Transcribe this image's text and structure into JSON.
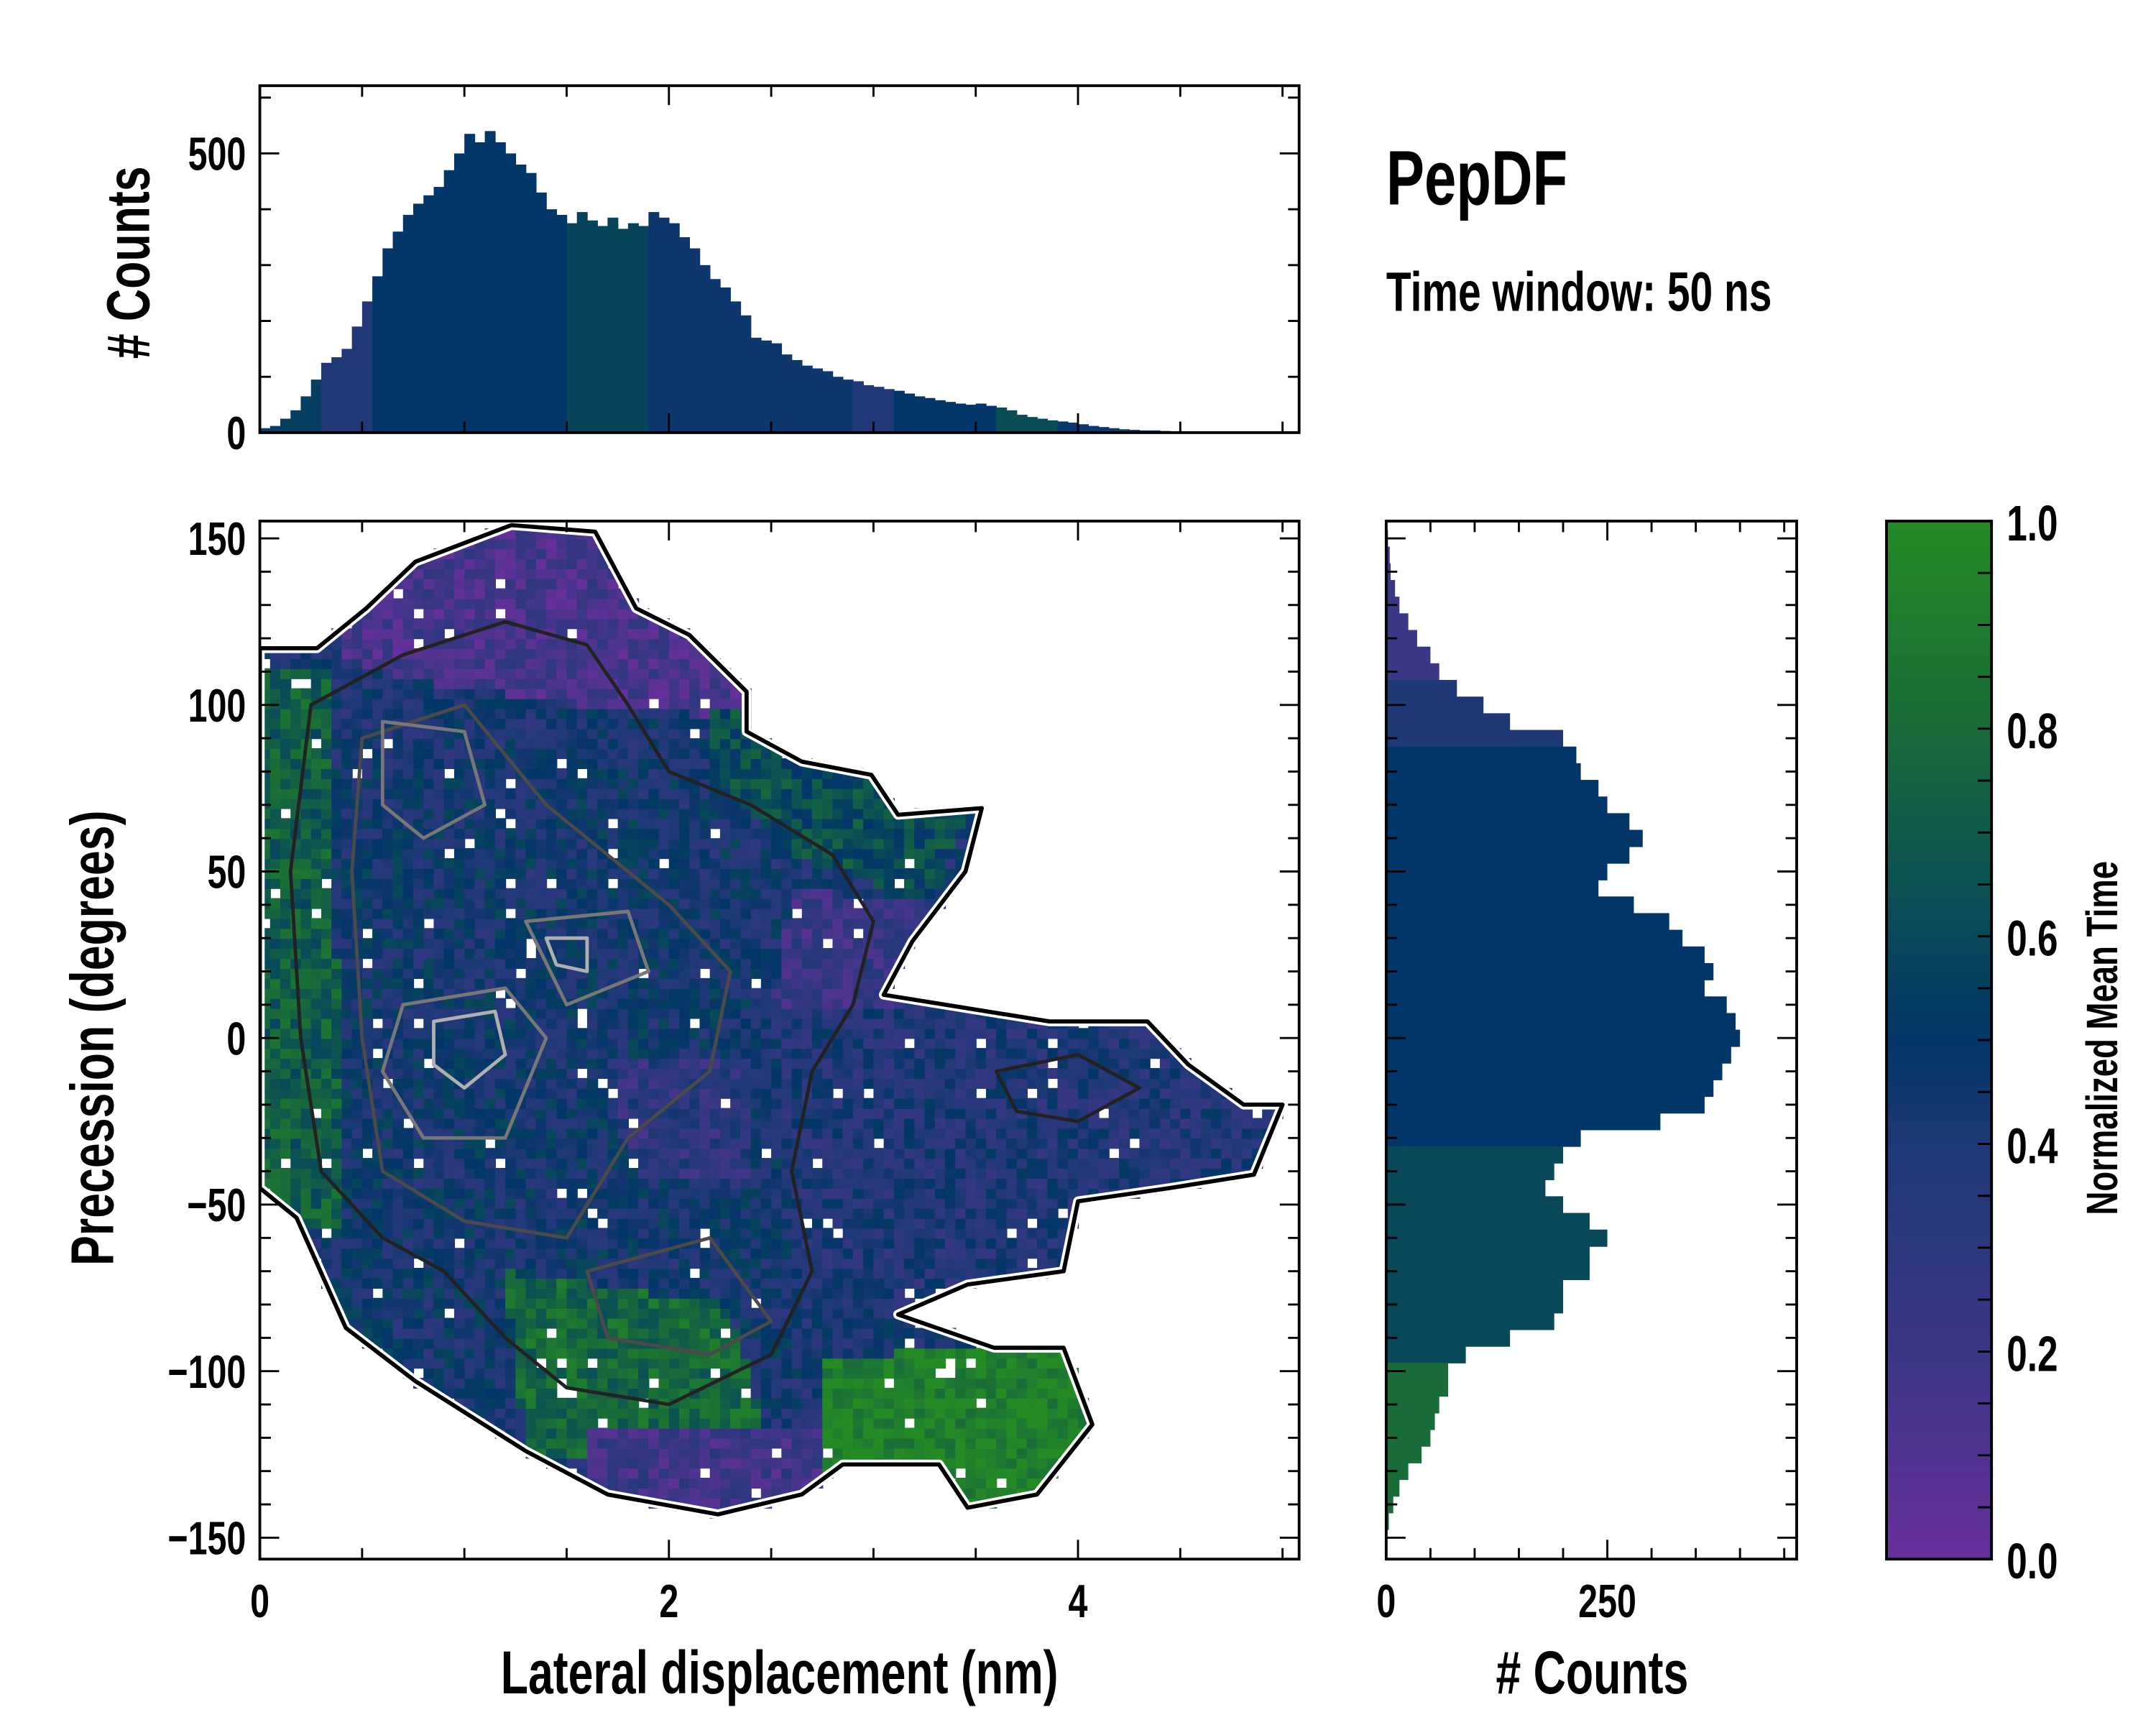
{
  "chart_data": [
    {
      "id": "joint",
      "type": "heatmap",
      "xlabel": "Lateral displacement (nm)",
      "ylabel": "Precession (degrees)",
      "xlim": [
        0,
        5.08
      ],
      "ylim": [
        -156,
        155
      ],
      "xticks": [
        0,
        2,
        4
      ],
      "xtick_labels": [
        "0",
        "2",
        "4"
      ],
      "yticks": [
        -150,
        -100,
        -50,
        0,
        50,
        100,
        150
      ],
      "ytick_labels": [
        "−150",
        "−100",
        "−50",
        "0",
        "50",
        "100",
        "150"
      ],
      "base_value": 0.42,
      "outline": [
        [
          0,
          117
        ],
        [
          0.28,
          117
        ],
        [
          0.52,
          129
        ],
        [
          0.76,
          143
        ],
        [
          1.23,
          154
        ],
        [
          1.64,
          152
        ],
        [
          1.84,
          129
        ],
        [
          2.1,
          121
        ],
        [
          2.38,
          104
        ],
        [
          2.38,
          92
        ],
        [
          2.65,
          83
        ],
        [
          2.99,
          79
        ],
        [
          3.12,
          67
        ],
        [
          3.53,
          69
        ],
        [
          3.45,
          50
        ],
        [
          3.19,
          29
        ],
        [
          3.05,
          13
        ],
        [
          3.86,
          5
        ],
        [
          4.34,
          5
        ],
        [
          4.54,
          -8
        ],
        [
          4.81,
          -20
        ],
        [
          5.0,
          -20
        ],
        [
          4.86,
          -41
        ],
        [
          4.45,
          -45
        ],
        [
          4.0,
          -49
        ],
        [
          3.93,
          -70
        ],
        [
          3.46,
          -74
        ],
        [
          3.12,
          -83
        ],
        [
          3.59,
          -93
        ],
        [
          3.93,
          -93
        ],
        [
          4.07,
          -116
        ],
        [
          3.8,
          -137
        ],
        [
          3.46,
          -141
        ],
        [
          3.32,
          -128
        ],
        [
          2.85,
          -128
        ],
        [
          2.65,
          -137
        ],
        [
          2.24,
          -143
        ],
        [
          1.7,
          -137
        ],
        [
          1.3,
          -124
        ],
        [
          0.76,
          -103
        ],
        [
          0.42,
          -87
        ],
        [
          0.18,
          -54
        ],
        [
          0,
          -45
        ]
      ],
      "regions": [
        {
          "value": 0.45,
          "polygon": [
            [
              0.3,
              80
            ],
            [
              2.4,
              80
            ],
            [
              2.6,
              -100
            ],
            [
              0.3,
              -100
            ]
          ]
        },
        {
          "value": 0.72,
          "polygon": [
            [
              0,
              110
            ],
            [
              0.35,
              110
            ],
            [
              0.4,
              -60
            ],
            [
              0,
              -50
            ]
          ]
        },
        {
          "value": 0.15,
          "polygon": [
            [
              0.5,
              160
            ],
            [
              2.2,
              160
            ],
            [
              2.6,
              95
            ],
            [
              1.6,
              100
            ],
            [
              0.7,
              108
            ],
            [
              0.4,
              115
            ]
          ]
        },
        {
          "value": 0.62,
          "polygon": [
            [
              2.2,
              100
            ],
            [
              3.5,
              75
            ],
            [
              3.3,
              40
            ],
            [
              2.6,
              55
            ],
            [
              2.2,
              80
            ]
          ]
        },
        {
          "value": 0.22,
          "polygon": [
            [
              2.6,
              45
            ],
            [
              3.3,
              40
            ],
            [
              3.1,
              5
            ],
            [
              2.5,
              5
            ]
          ]
        },
        {
          "value": 0.3,
          "polygon": [
            [
              1.7,
              -5
            ],
            [
              2.4,
              -5
            ],
            [
              2.4,
              -45
            ],
            [
              1.8,
              -40
            ]
          ]
        },
        {
          "value": 0.38,
          "polygon": [
            [
              2.55,
              8
            ],
            [
              5.1,
              8
            ],
            [
              5.1,
              -60
            ],
            [
              3.8,
              -80
            ],
            [
              2.6,
              -80
            ]
          ]
        },
        {
          "value": 0.78,
          "polygon": [
            [
              1.2,
              -70
            ],
            [
              2.3,
              -80
            ],
            [
              2.5,
              -125
            ],
            [
              1.3,
              -125
            ]
          ]
        },
        {
          "value": 0.2,
          "polygon": [
            [
              1.6,
              -118
            ],
            [
              2.9,
              -115
            ],
            [
              2.8,
              -150
            ],
            [
              1.6,
              -150
            ]
          ]
        },
        {
          "value": 0.96,
          "polygon": [
            [
              2.75,
              -96
            ],
            [
              4.2,
              -90
            ],
            [
              4.2,
              -150
            ],
            [
              2.75,
              -150
            ]
          ]
        }
      ],
      "contours": [
        {
          "level": 1,
          "color": "#222222",
          "polygon": [
            [
              0.25,
              100
            ],
            [
              0.7,
              115
            ],
            [
              1.2,
              125
            ],
            [
              1.6,
              118
            ],
            [
              1.8,
              100
            ],
            [
              2.0,
              80
            ],
            [
              2.4,
              70
            ],
            [
              2.8,
              55
            ],
            [
              3.0,
              35
            ],
            [
              2.9,
              10
            ],
            [
              2.7,
              -10
            ],
            [
              2.6,
              -40
            ],
            [
              2.7,
              -70
            ],
            [
              2.5,
              -95
            ],
            [
              2.0,
              -110
            ],
            [
              1.5,
              -105
            ],
            [
              1.2,
              -90
            ],
            [
              0.9,
              -70
            ],
            [
              0.6,
              -60
            ],
            [
              0.3,
              -40
            ],
            [
              0.2,
              0
            ],
            [
              0.15,
              50
            ]
          ]
        },
        {
          "level": 1,
          "color": "#222222",
          "polygon": [
            [
              3.6,
              -10
            ],
            [
              4.0,
              -5
            ],
            [
              4.3,
              -15
            ],
            [
              4.0,
              -25
            ],
            [
              3.7,
              -22
            ]
          ]
        },
        {
          "level": 2,
          "color": "#4a4a4a",
          "polygon": [
            [
              0.5,
              90
            ],
            [
              1.0,
              100
            ],
            [
              1.4,
              70
            ],
            [
              2.0,
              40
            ],
            [
              2.3,
              20
            ],
            [
              2.2,
              -10
            ],
            [
              1.8,
              -30
            ],
            [
              1.5,
              -60
            ],
            [
              1.0,
              -55
            ],
            [
              0.6,
              -40
            ],
            [
              0.5,
              0
            ],
            [
              0.45,
              50
            ]
          ]
        },
        {
          "level": 2,
          "color": "#4a4a4a",
          "polygon": [
            [
              1.6,
              -70
            ],
            [
              2.2,
              -60
            ],
            [
              2.5,
              -85
            ],
            [
              2.2,
              -95
            ],
            [
              1.7,
              -90
            ]
          ]
        },
        {
          "level": 3,
          "color": "#777777",
          "polygon": [
            [
              0.6,
              95
            ],
            [
              1.0,
              92
            ],
            [
              1.1,
              70
            ],
            [
              0.8,
              60
            ],
            [
              0.6,
              70
            ]
          ]
        },
        {
          "level": 3,
          "color": "#777777",
          "polygon": [
            [
              0.7,
              10
            ],
            [
              1.2,
              15
            ],
            [
              1.4,
              0
            ],
            [
              1.2,
              -30
            ],
            [
              0.8,
              -30
            ],
            [
              0.6,
              -10
            ]
          ]
        },
        {
          "level": 3,
          "color": "#777777",
          "polygon": [
            [
              1.3,
              35
            ],
            [
              1.8,
              38
            ],
            [
              1.9,
              20
            ],
            [
              1.5,
              10
            ]
          ]
        },
        {
          "level": 4,
          "color": "#b0b0b0",
          "polygon": [
            [
              0.85,
              5
            ],
            [
              1.15,
              8
            ],
            [
              1.2,
              -5
            ],
            [
              1.0,
              -15
            ],
            [
              0.85,
              -8
            ]
          ]
        },
        {
          "level": 4,
          "color": "#b0b0b0",
          "polygon": [
            [
              1.4,
              30
            ],
            [
              1.6,
              30
            ],
            [
              1.6,
              20
            ],
            [
              1.45,
              22
            ]
          ]
        }
      ]
    },
    {
      "id": "top-histogram",
      "type": "bar",
      "ylabel": "# Counts",
      "ylim": [
        0,
        621
      ],
      "yticks": [
        0,
        500
      ],
      "ytick_labels": [
        "0",
        "500"
      ],
      "bin_start": 0,
      "bin_width": 0.05,
      "values": [
        8,
        12,
        25,
        40,
        65,
        95,
        125,
        135,
        150,
        190,
        235,
        280,
        330,
        360,
        390,
        410,
        425,
        440,
        470,
        500,
        535,
        520,
        540,
        520,
        500,
        480,
        465,
        430,
        400,
        390,
        375,
        395,
        380,
        370,
        385,
        365,
        375,
        370,
        395,
        385,
        375,
        350,
        330,
        300,
        275,
        260,
        235,
        210,
        170,
        165,
        160,
        140,
        130,
        120,
        115,
        110,
        100,
        95,
        92,
        85,
        82,
        78,
        75,
        70,
        65,
        62,
        58,
        55,
        52,
        50,
        52,
        48,
        45,
        40,
        32,
        28,
        25,
        22,
        20,
        18,
        15,
        12,
        10,
        8,
        6,
        5,
        4,
        4,
        3,
        2,
        2,
        1,
        1,
        1,
        0
      ],
      "mean_time_bands": [
        [
          0,
          0.3,
          0.55
        ],
        [
          0.3,
          0.55,
          0.38
        ],
        [
          0.55,
          1.5,
          0.5
        ],
        [
          1.5,
          1.9,
          0.58
        ],
        [
          1.9,
          2.9,
          0.46
        ],
        [
          2.9,
          3.1,
          0.38
        ],
        [
          3.1,
          3.6,
          0.5
        ],
        [
          3.6,
          3.9,
          0.62
        ],
        [
          3.9,
          5,
          0.47
        ]
      ]
    },
    {
      "id": "right-histogram",
      "type": "bar",
      "orientation": "horizontal",
      "xlabel": "# Counts",
      "xlim": [
        0,
        464
      ],
      "xticks": [
        0,
        250
      ],
      "xtick_labels": [
        "0",
        "250"
      ],
      "bin_start": 150,
      "bin_width": -5,
      "values": [
        2,
        4,
        5,
        10,
        15,
        25,
        35,
        50,
        60,
        80,
        110,
        140,
        200,
        215,
        220,
        240,
        250,
        275,
        290,
        275,
        250,
        240,
        280,
        320,
        335,
        360,
        370,
        360,
        385,
        395,
        400,
        390,
        380,
        370,
        360,
        310,
        220,
        200,
        190,
        180,
        200,
        230,
        250,
        230,
        230,
        200,
        200,
        190,
        140,
        90,
        70,
        70,
        60,
        55,
        50,
        40,
        25,
        15,
        8,
        3,
        1
      ],
      "mean_time_bands": [
        [
          110,
          155,
          0.2
        ],
        [
          90,
          110,
          0.4
        ],
        [
          -30,
          90,
          0.5
        ],
        [
          -95,
          -30,
          0.6
        ],
        [
          -145,
          -95,
          0.8
        ],
        [
          -160,
          -145,
          0.65
        ]
      ]
    },
    {
      "id": "colorbar",
      "type": "colorbar",
      "label": "Normalized Mean Time",
      "range": [
        0,
        1
      ],
      "ticks": [
        0,
        0.2,
        0.4,
        0.6,
        0.8,
        1.0
      ],
      "tick_labels": [
        "0.0",
        "0.2",
        "0.4",
        "0.6",
        "0.8",
        "1.0"
      ],
      "colormap": [
        [
          0,
          "#66309a"
        ],
        [
          0.2,
          "#3b3686"
        ],
        [
          0.4,
          "#1e3876"
        ],
        [
          0.5,
          "#033668"
        ],
        [
          0.65,
          "#0b5152"
        ],
        [
          0.8,
          "#196b3a"
        ],
        [
          1,
          "#238a24"
        ]
      ]
    }
  ],
  "title": "PepDF",
  "subtitle": "Time window: 50 ns"
}
